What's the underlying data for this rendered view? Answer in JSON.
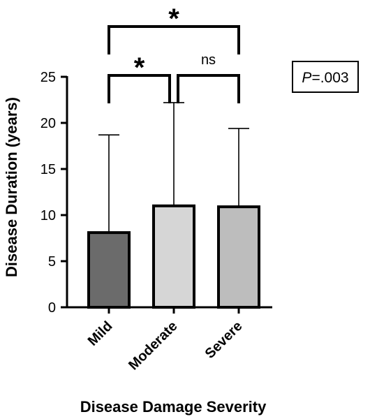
{
  "chart_data": {
    "type": "bar",
    "title": "",
    "xlabel": "Disease Damage Severity",
    "ylabel": "Disease Duration (years)",
    "ylim": [
      0,
      25
    ],
    "yticks": [
      "0",
      "5",
      "10",
      "15",
      "20",
      "25"
    ],
    "categories": [
      "Mild",
      "Moderate",
      "Severe"
    ],
    "values": [
      8.1,
      11.0,
      10.9
    ],
    "error_upper": [
      18.7,
      22.2,
      19.4
    ],
    "bar_colors": [
      "#6b6b6b",
      "#d6d6d6",
      "#bdbdbd"
    ],
    "grid": false,
    "significance": [
      {
        "from": 0,
        "to": 1,
        "label": "*"
      },
      {
        "from": 1,
        "to": 2,
        "label": "ns"
      },
      {
        "from": 0,
        "to": 2,
        "label": "*"
      }
    ],
    "annotation_box": {
      "p_italic": "P",
      "p_rest": "=.003"
    }
  }
}
